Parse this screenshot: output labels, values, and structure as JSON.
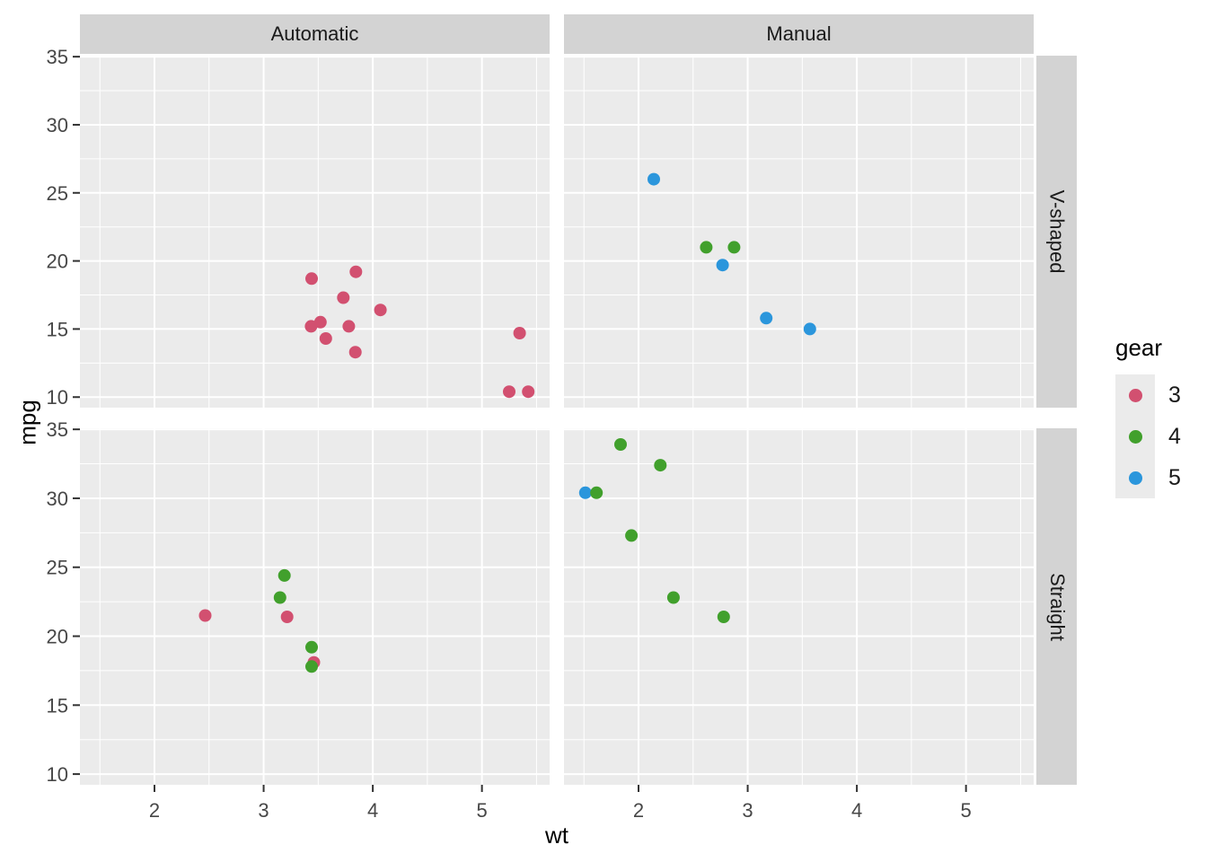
{
  "chart_data": {
    "type": "scatter",
    "title": "",
    "xlabel": "wt",
    "ylabel": "mpg",
    "x_domain": [
      1.317,
      5.62
    ],
    "y_domain": [
      9.225,
      35.075
    ],
    "x_ticks": [
      2,
      3,
      4,
      5
    ],
    "y_ticks": [
      35,
      30,
      25,
      20,
      15,
      10
    ],
    "x_minor_ticks": [
      1.5,
      2.5,
      3.5,
      4.5,
      5.5
    ],
    "y_minor_ticks": [
      12.5,
      17.5,
      22.5,
      27.5,
      32.5
    ],
    "grid": true,
    "legend": {
      "title": "gear",
      "position": "right",
      "entries": [
        {
          "label": "3",
          "color": "#D25070"
        },
        {
          "label": "4",
          "color": "#41A02C"
        },
        {
          "label": "5",
          "color": "#2B96DC"
        }
      ]
    },
    "facets": {
      "col_labels": [
        "Automatic",
        "Manual"
      ],
      "row_labels": [
        "V-shaped",
        "Straight"
      ]
    },
    "panels": [
      {
        "col": "Automatic",
        "row": "V-shaped",
        "points": [
          [
            3.44,
            18.7,
            "3"
          ],
          [
            3.57,
            14.3,
            "3"
          ],
          [
            3.73,
            17.3,
            "3"
          ],
          [
            3.78,
            15.2,
            "3"
          ],
          [
            4.07,
            16.4,
            "3"
          ],
          [
            5.25,
            10.4,
            "3"
          ],
          [
            5.424,
            10.4,
            "3"
          ],
          [
            5.345,
            14.7,
            "3"
          ],
          [
            3.52,
            15.5,
            "3"
          ],
          [
            3.435,
            15.2,
            "3"
          ],
          [
            3.84,
            13.3,
            "3"
          ],
          [
            3.845,
            19.2,
            "3"
          ]
        ]
      },
      {
        "col": "Manual",
        "row": "V-shaped",
        "points": [
          [
            2.62,
            21.0,
            "4"
          ],
          [
            2.875,
            21.0,
            "4"
          ],
          [
            2.14,
            26.0,
            "5"
          ],
          [
            2.77,
            19.7,
            "5"
          ],
          [
            3.17,
            15.8,
            "5"
          ],
          [
            3.57,
            15.0,
            "5"
          ]
        ]
      },
      {
        "col": "Automatic",
        "row": "Straight",
        "points": [
          [
            2.465,
            21.5,
            "3"
          ],
          [
            3.215,
            21.4,
            "3"
          ],
          [
            3.46,
            18.1,
            "3"
          ],
          [
            3.19,
            24.4,
            "4"
          ],
          [
            3.15,
            22.8,
            "4"
          ],
          [
            3.44,
            19.2,
            "4"
          ],
          [
            3.44,
            17.8,
            "4"
          ]
        ]
      },
      {
        "col": "Manual",
        "row": "Straight",
        "points": [
          [
            1.513,
            30.4,
            "5"
          ],
          [
            1.615,
            30.4,
            "4"
          ],
          [
            1.835,
            33.9,
            "4"
          ],
          [
            1.935,
            27.3,
            "4"
          ],
          [
            2.2,
            32.4,
            "4"
          ],
          [
            2.32,
            22.8,
            "4"
          ],
          [
            2.78,
            21.4,
            "4"
          ]
        ]
      }
    ],
    "style": {
      "panel_bg": "#EBEBEB",
      "strip_bg": "#D3D3D3",
      "grid_color": "#FFFFFF",
      "tick_color": "#333333",
      "tick_label_color": "#474747",
      "axis_title_color": "#000000",
      "strip_text_color": "#1A1A1A",
      "point_radius": 7
    }
  }
}
